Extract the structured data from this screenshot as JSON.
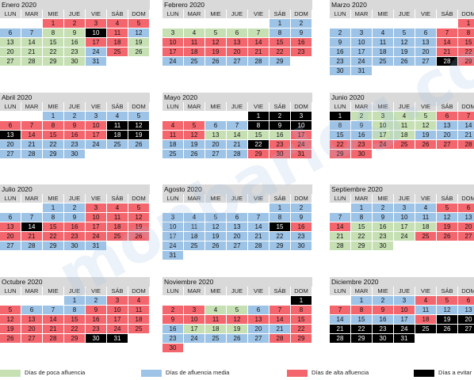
{
  "weekdays": [
    "LUN",
    "MAR",
    "MIE",
    "JUE",
    "VIE",
    "SÁB",
    "DOM"
  ],
  "months": [
    {
      "name": "Enero 2020",
      "offset": 2,
      "types": [
        3,
        3,
        3,
        3,
        3,
        2,
        2,
        1,
        1,
        4,
        3,
        2,
        1,
        1,
        1,
        1,
        3,
        3,
        1,
        1,
        1,
        1,
        1,
        2,
        3,
        1,
        1,
        1,
        1,
        1,
        2
      ]
    },
    {
      "name": "Febrero 2020",
      "offset": 5,
      "types": [
        2,
        2,
        1,
        1,
        1,
        1,
        1,
        2,
        2,
        3,
        3,
        3,
        3,
        3,
        3,
        3,
        3,
        3,
        3,
        3,
        3,
        3,
        3,
        2,
        2,
        2,
        2,
        2,
        2
      ]
    },
    {
      "name": "Marzo 2020",
      "offset": 6,
      "types": [
        3,
        2,
        2,
        2,
        2,
        2,
        3,
        3,
        2,
        2,
        2,
        2,
        2,
        3,
        3,
        2,
        2,
        2,
        2,
        2,
        3,
        3,
        2,
        2,
        2,
        2,
        2,
        4,
        3,
        2,
        2
      ]
    },
    {
      "name": "Abril 2020",
      "offset": 2,
      "types": [
        2,
        2,
        2,
        2,
        2,
        3,
        3,
        3,
        3,
        3,
        4,
        4,
        4,
        3,
        3,
        3,
        3,
        4,
        4,
        2,
        2,
        2,
        2,
        2,
        2,
        2,
        2,
        2,
        2,
        2
      ]
    },
    {
      "name": "Mayo 2020",
      "offset": 4,
      "types": [
        4,
        4,
        4,
        3,
        3,
        2,
        2,
        4,
        4,
        4,
        3,
        3,
        1,
        1,
        1,
        1,
        3,
        2,
        2,
        2,
        2,
        4,
        3,
        3,
        2,
        2,
        2,
        2,
        3,
        3,
        3
      ]
    },
    {
      "name": "Junio 2020",
      "offset": 0,
      "types": [
        4,
        1,
        1,
        1,
        1,
        3,
        3,
        2,
        2,
        1,
        1,
        1,
        2,
        2,
        2,
        2,
        1,
        1,
        2,
        2,
        2,
        3,
        3,
        3,
        3,
        3,
        3,
        3,
        3,
        3
      ]
    },
    {
      "name": "Julio 2020",
      "offset": 2,
      "types": [
        2,
        2,
        3,
        3,
        3,
        2,
        2,
        2,
        2,
        3,
        3,
        3,
        3,
        4,
        3,
        3,
        3,
        3,
        3,
        3,
        3,
        3,
        3,
        3,
        3,
        3,
        2,
        2,
        2,
        2,
        2
      ]
    },
    {
      "name": "Agosto 2020",
      "offset": 5,
      "types": [
        2,
        2,
        2,
        2,
        2,
        2,
        2,
        2,
        2,
        2,
        2,
        2,
        2,
        2,
        4,
        3,
        2,
        2,
        2,
        2,
        2,
        2,
        2,
        2,
        2,
        2,
        2,
        2,
        2,
        2,
        2
      ]
    },
    {
      "name": "Septiembre 2020",
      "offset": 1,
      "types": [
        2,
        2,
        2,
        2,
        3,
        3,
        2,
        2,
        2,
        2,
        2,
        2,
        2,
        3,
        1,
        1,
        1,
        1,
        3,
        3,
        1,
        1,
        1,
        1,
        3,
        3,
        3,
        1,
        1,
        1
      ]
    },
    {
      "name": "Octubre 2020",
      "offset": 3,
      "types": [
        2,
        2,
        3,
        3,
        3,
        2,
        2,
        2,
        3,
        3,
        3,
        3,
        3,
        3,
        3,
        3,
        3,
        3,
        3,
        3,
        3,
        3,
        3,
        3,
        3,
        3,
        3,
        3,
        3,
        4,
        4
      ]
    },
    {
      "name": "Noviembre 2020",
      "offset": 6,
      "types": [
        4,
        3,
        3,
        1,
        1,
        2,
        3,
        3,
        3,
        3,
        3,
        3,
        3,
        3,
        3,
        2,
        1,
        1,
        1,
        2,
        2,
        3,
        2,
        2,
        2,
        2,
        2,
        3,
        3,
        3
      ]
    },
    {
      "name": "Diciembre 2020",
      "offset": 1,
      "types": [
        2,
        2,
        2,
        3,
        3,
        3,
        3,
        3,
        3,
        3,
        2,
        2,
        2,
        2,
        2,
        2,
        2,
        3,
        4,
        4,
        4,
        4,
        4,
        4,
        4,
        4,
        4,
        4,
        4,
        4,
        4
      ]
    }
  ],
  "legend": [
    {
      "label": "Días de poca afluencia",
      "color": "#c6e0b4"
    },
    {
      "label": "Días de afluencia media",
      "color": "#9dc3e6"
    },
    {
      "label": "Días de alta afluencia",
      "color": "#f4666d"
    },
    {
      "label": "Días a evitar",
      "color": "#000000"
    }
  ]
}
